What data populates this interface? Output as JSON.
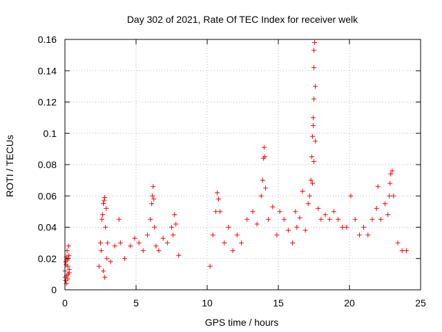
{
  "chart_data": {
    "type": "scatter",
    "title": "Day 302 of 2021, Rate Of TEC Index for receiver welk",
    "xlabel": "GPS time / hours",
    "ylabel": "ROTI / TECUs",
    "xlim": [
      0,
      25
    ],
    "ylim": [
      0,
      0.16
    ],
    "xticks": [
      0,
      5,
      10,
      15,
      20,
      25
    ],
    "yticks": [
      0,
      0.02,
      0.04,
      0.06,
      0.08,
      0.1,
      0.12,
      0.14,
      0.16
    ],
    "xtick_labels": [
      "0",
      "5",
      "10",
      "15",
      "20",
      "25"
    ],
    "ytick_labels": [
      "0",
      "0.02",
      "0.04",
      "0.06",
      "0.08",
      "0.1",
      "0.12",
      "0.14",
      "0.16"
    ],
    "grid": true,
    "marker": "plus",
    "color": "#ff0000",
    "series": [
      {
        "x": [
          0.0,
          0.05,
          0.1,
          0.12,
          0.15,
          0.2,
          0.25,
          0.3,
          0.05,
          0.1,
          0.2,
          0.25,
          0.15,
          0.3,
          0.08,
          0.22,
          0.28,
          0.02,
          2.4,
          2.5,
          2.6,
          2.7,
          2.8,
          2.9,
          3.0,
          2.65,
          2.75,
          2.85,
          2.55,
          2.95,
          2.7,
          2.8,
          3.2,
          3.5,
          3.8,
          3.9,
          4.2,
          4.6,
          4.9,
          5.2,
          5.5,
          5.8,
          6.0,
          6.1,
          6.15,
          6.2,
          6.25,
          6.3,
          6.4,
          6.6,
          6.9,
          7.2,
          7.5,
          7.6,
          7.7,
          7.8,
          8.0,
          10.2,
          10.4,
          10.6,
          10.7,
          10.8,
          10.9,
          11.2,
          11.5,
          11.8,
          12.1,
          12.4,
          12.8,
          13.2,
          13.5,
          13.8,
          13.9,
          13.95,
          14.0,
          14.05,
          14.1,
          14.3,
          14.6,
          14.9,
          15.1,
          15.4,
          15.7,
          16.0,
          16.2,
          16.3,
          16.5,
          16.7,
          16.9,
          17.1,
          17.2,
          17.3,
          17.35,
          17.4,
          17.45,
          17.5,
          17.5,
          17.5,
          17.55,
          17.6,
          17.45,
          17.5,
          17.4,
          17.6,
          17.8,
          18.0,
          18.3,
          18.6,
          18.9,
          19.2,
          19.5,
          19.8,
          20.1,
          20.4,
          20.7,
          21.0,
          21.3,
          21.6,
          21.9,
          22.0,
          22.2,
          22.5,
          22.7,
          22.8,
          22.85,
          22.9,
          23.0,
          23.1,
          23.4,
          23.7,
          24.0
        ],
        "y": [
          0.012,
          0.018,
          0.021,
          0.009,
          0.025,
          0.015,
          0.028,
          0.011,
          0.006,
          0.004,
          0.007,
          0.02,
          0.019,
          0.013,
          0.016,
          0.01,
          0.022,
          0.008,
          0.015,
          0.03,
          0.045,
          0.055,
          0.059,
          0.052,
          0.03,
          0.048,
          0.057,
          0.04,
          0.025,
          0.02,
          0.012,
          0.008,
          0.018,
          0.028,
          0.045,
          0.03,
          0.02,
          0.028,
          0.033,
          0.03,
          0.025,
          0.035,
          0.045,
          0.055,
          0.06,
          0.066,
          0.058,
          0.04,
          0.028,
          0.025,
          0.033,
          0.03,
          0.04,
          0.035,
          0.048,
          0.042,
          0.022,
          0.015,
          0.035,
          0.05,
          0.062,
          0.058,
          0.05,
          0.03,
          0.04,
          0.025,
          0.035,
          0.03,
          0.045,
          0.05,
          0.042,
          0.06,
          0.07,
          0.084,
          0.091,
          0.085,
          0.065,
          0.045,
          0.053,
          0.035,
          0.05,
          0.045,
          0.038,
          0.03,
          0.05,
          0.04,
          0.046,
          0.063,
          0.038,
          0.055,
          0.06,
          0.07,
          0.085,
          0.098,
          0.11,
          0.122,
          0.142,
          0.153,
          0.158,
          0.13,
          0.105,
          0.082,
          0.068,
          0.095,
          0.052,
          0.045,
          0.048,
          0.045,
          0.05,
          0.045,
          0.04,
          0.04,
          0.06,
          0.045,
          0.035,
          0.04,
          0.035,
          0.045,
          0.052,
          0.066,
          0.045,
          0.055,
          0.048,
          0.06,
          0.068,
          0.074,
          0.076,
          0.06,
          0.03,
          0.025,
          0.025
        ]
      }
    ]
  }
}
